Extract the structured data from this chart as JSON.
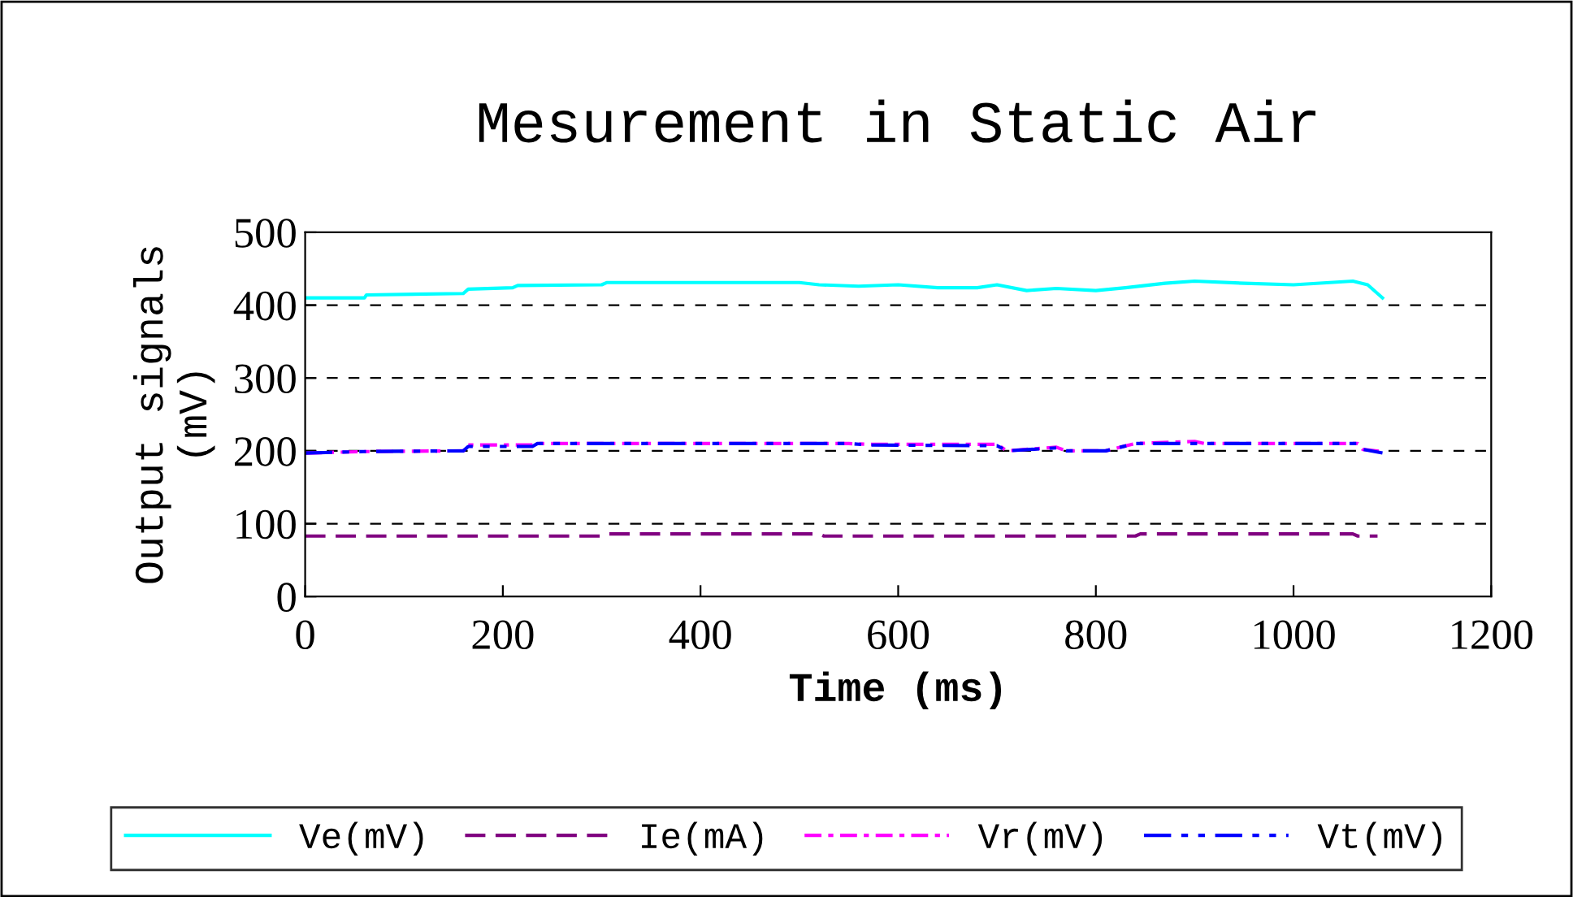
{
  "chart_data": {
    "type": "line",
    "title": "Mesurement in Static Air",
    "xlabel": "Time (ms)",
    "ylabel": "Output signals\n(mV)",
    "xlim": [
      0,
      1200
    ],
    "xticks": [
      0,
      200,
      400,
      600,
      800,
      1000,
      1200
    ],
    "ylim": [
      0,
      500
    ],
    "yticks": [
      0,
      100,
      200,
      300,
      400,
      500
    ],
    "grid": "y",
    "legend": "bottom",
    "marker": "none",
    "series": [
      {
        "name": "Ve(mV)",
        "color": "#00ffff",
        "line_style": "solid",
        "x": [
          0,
          60,
          62,
          160,
          165,
          210,
          215,
          300,
          305,
          500,
          520,
          560,
          600,
          640,
          680,
          700,
          730,
          760,
          800,
          830,
          870,
          900,
          950,
          1000,
          1060,
          1075,
          1090
        ],
        "values": [
          410,
          410,
          414,
          416,
          422,
          424,
          427,
          428,
          431,
          431,
          428,
          426,
          428,
          424,
          424,
          428,
          420,
          423,
          420,
          424,
          430,
          433,
          430,
          428,
          433,
          428,
          410
        ]
      },
      {
        "name": "Ie(mA)",
        "color": "#800080",
        "line_style": "dashed",
        "x": [
          0,
          300,
          305,
          520,
          525,
          840,
          845,
          1060,
          1065,
          1085
        ],
        "values": [
          83,
          83,
          86,
          86,
          83,
          83,
          86,
          86,
          83,
          83
        ]
      },
      {
        "name": "Vr(mV)",
        "color": "#ff00ff",
        "line_style": "dashdot",
        "x": [
          0,
          60,
          160,
          165,
          230,
          235,
          550,
          570,
          700,
          710,
          760,
          770,
          810,
          840,
          900,
          910,
          1065,
          1070,
          1090
        ],
        "values": [
          197,
          199,
          200,
          208,
          208,
          210,
          210,
          209,
          209,
          200,
          205,
          200,
          200,
          210,
          213,
          210,
          210,
          202,
          199
        ]
      },
      {
        "name": "Vt(mV)",
        "color": "#0000ff",
        "line_style": "dashdotdot",
        "x": [
          0,
          60,
          160,
          165,
          230,
          235,
          550,
          570,
          700,
          710,
          760,
          770,
          810,
          840,
          1065,
          1070,
          1090
        ],
        "values": [
          197,
          199,
          200,
          206,
          206,
          210,
          210,
          208,
          207,
          200,
          204,
          200,
          200,
          210,
          210,
          202,
          197
        ]
      }
    ]
  }
}
